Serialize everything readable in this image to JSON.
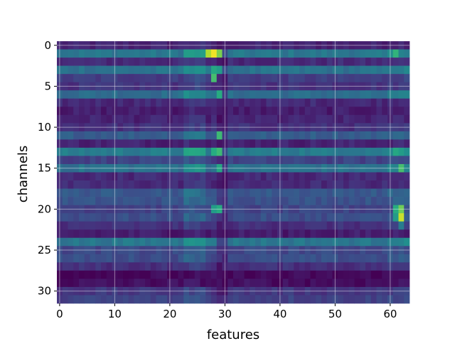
{
  "chart_data": {
    "type": "heatmap",
    "title": "",
    "xlabel": "features",
    "ylabel": "channels",
    "x_range": [
      0,
      63
    ],
    "y_range": [
      0,
      31
    ],
    "y_inverted": true,
    "x_ticks": [
      "0",
      "10",
      "20",
      "30",
      "40",
      "50",
      "60"
    ],
    "y_ticks": [
      "0",
      "5",
      "10",
      "15",
      "20",
      "25",
      "30"
    ],
    "grid": true,
    "colormap": "viridis",
    "value_range": [
      0,
      1
    ],
    "row_levels": [
      0.1,
      0.4,
      0.12,
      0.38,
      0.18,
      0.15,
      0.36,
      0.12,
      0.08,
      0.1,
      0.14,
      0.3,
      0.1,
      0.42,
      0.2,
      0.38,
      0.12,
      0.12,
      0.28,
      0.26,
      0.2,
      0.24,
      0.14,
      0.08,
      0.4,
      0.22,
      0.24,
      0.14,
      0.02,
      0.04,
      0.16,
      0.2
    ],
    "hot_cells": [
      {
        "row": 1,
        "col": 27,
        "value": 0.88
      },
      {
        "row": 1,
        "col": 28,
        "value": 0.98
      },
      {
        "row": 1,
        "col": 29,
        "value": 0.8
      },
      {
        "row": 1,
        "col": 61,
        "value": 0.65
      },
      {
        "row": 3,
        "col": 28,
        "value": 0.6
      },
      {
        "row": 3,
        "col": 29,
        "value": 0.55
      },
      {
        "row": 4,
        "col": 28,
        "value": 0.7
      },
      {
        "row": 6,
        "col": 29,
        "value": 0.62
      },
      {
        "row": 11,
        "col": 29,
        "value": 0.68
      },
      {
        "row": 13,
        "col": 28,
        "value": 0.62
      },
      {
        "row": 13,
        "col": 29,
        "value": 0.68
      },
      {
        "row": 13,
        "col": 61,
        "value": 0.6
      },
      {
        "row": 13,
        "col": 62,
        "value": 0.55
      },
      {
        "row": 15,
        "col": 29,
        "value": 0.6
      },
      {
        "row": 15,
        "col": 62,
        "value": 0.7
      },
      {
        "row": 20,
        "col": 28,
        "value": 0.55
      },
      {
        "row": 20,
        "col": 29,
        "value": 0.62
      },
      {
        "row": 20,
        "col": 61,
        "value": 0.62
      },
      {
        "row": 20,
        "col": 62,
        "value": 0.78
      },
      {
        "row": 21,
        "col": 61,
        "value": 0.55
      },
      {
        "row": 21,
        "col": 62,
        "value": 0.92
      },
      {
        "row": 22,
        "col": 62,
        "value": 0.42
      }
    ]
  }
}
